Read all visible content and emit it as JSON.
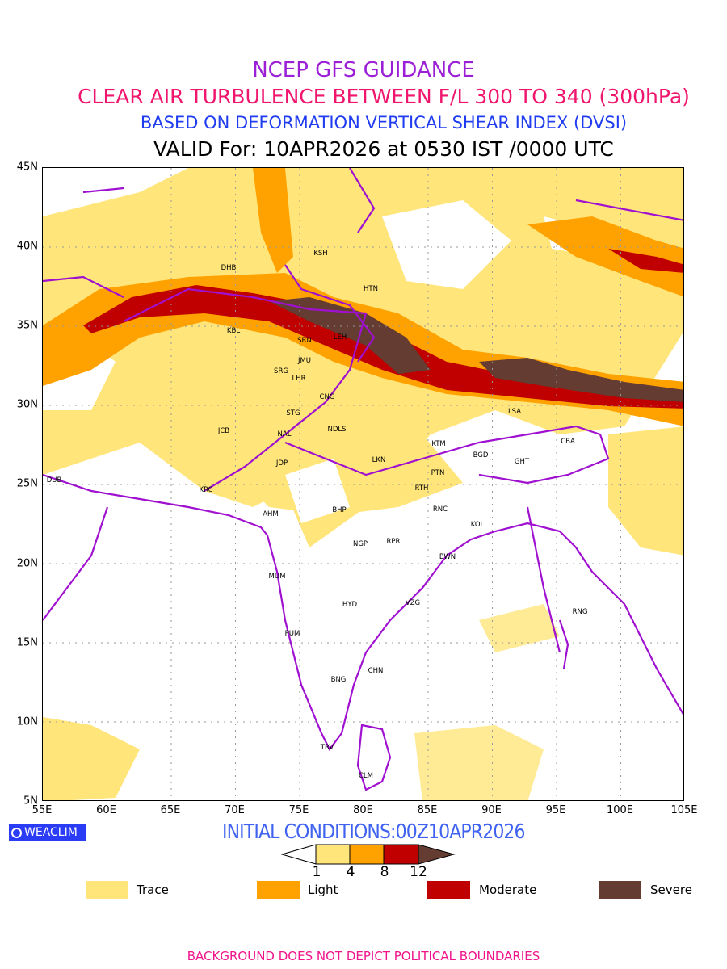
{
  "titles": {
    "line1": "NCEP GFS GUIDANCE",
    "line2": "CLEAR AIR TURBULENCE BETWEEN F/L 300 TO 340 (300hPa)",
    "line3": "BASED ON DEFORMATION VERTICAL SHEAR INDEX (DVSI)",
    "line4": "VALID For: 10APR2026 at 0530 IST /0000 UTC"
  },
  "axes": {
    "lat_labels": [
      "45N",
      "40N",
      "35N",
      "30N",
      "25N",
      "20N",
      "15N",
      "10N",
      "5N"
    ],
    "lon_labels": [
      "55E",
      "60E",
      "65E",
      "70E",
      "75E",
      "80E",
      "85E",
      "90E",
      "95E",
      "100E",
      "105E"
    ]
  },
  "stations": [
    "KSH",
    "DHB",
    "HTN",
    "KBL",
    "SRN",
    "LEH",
    "JMU",
    "SRG",
    "LHR",
    "CNG",
    "STG",
    "LSA",
    "JCB",
    "NAL",
    "NDLS",
    "KTM",
    "CBA",
    "BGD",
    "GHT",
    "JDP",
    "LKN",
    "PTN",
    "DUB",
    "KRC",
    "RTH",
    "AHM",
    "BHP",
    "RNC",
    "KOL",
    "NGP",
    "RPR",
    "BWN",
    "MUM",
    "HYD",
    "VZG",
    "RNG",
    "PUM",
    "CHN",
    "BNG",
    "TRV",
    "CLM"
  ],
  "logo": "WEACLIM",
  "initial_conditions": "INITIAL CONDITIONS:00Z10APR2026",
  "colorbar": {
    "ticks": [
      "1",
      "4",
      "8",
      "12"
    ],
    "colors": [
      "#ffe57a",
      "#ffa200",
      "#c00000",
      "#643c32"
    ]
  },
  "legend": [
    {
      "label": "Trace",
      "color": "#ffe57a"
    },
    {
      "label": "Light",
      "color": "#ffa200"
    },
    {
      "label": "Moderate",
      "color": "#c00000"
    },
    {
      "label": "Severe",
      "color": "#643c32"
    }
  ],
  "footer": "BACKGROUND DOES NOT DEPICT POLITICAL BOUNDARIES"
}
